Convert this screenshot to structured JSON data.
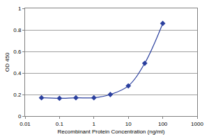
{
  "chart_data": {
    "type": "line",
    "x_label": "Recombinant Protein Concentration (ng/ml)",
    "y_label": "OD 450",
    "x": [
      0.03,
      0.1,
      0.3,
      1,
      3,
      10,
      30,
      100
    ],
    "values": [
      0.17,
      0.165,
      0.17,
      0.17,
      0.2,
      0.28,
      0.49,
      0.86
    ],
    "color": "#2a3f9e",
    "marker": "diamond",
    "log": "x",
    "xlim": [
      0.01,
      1000
    ],
    "xticks": [
      0.01,
      0.1,
      1,
      10,
      100,
      1000
    ],
    "ylim": [
      0,
      1
    ],
    "yticks": [
      0,
      0.2,
      0.4,
      0.6,
      0.8,
      1
    ],
    "grid": true
  }
}
